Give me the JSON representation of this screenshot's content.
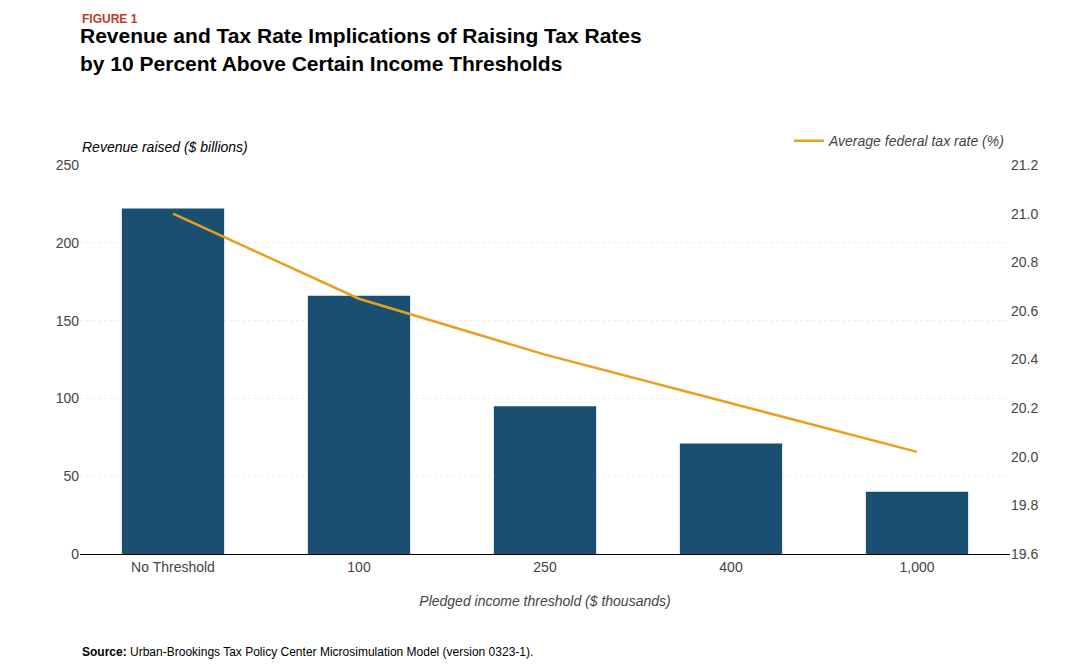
{
  "chart_data": {
    "type": "bar",
    "title": [
      "Revenue and Tax Rate Implications of Raising Tax Rates",
      "by 10 Percent Above Certain Income Thresholds"
    ],
    "annotations": [
      {
        "text": "FIGURE 1",
        "color": "#C0392B"
      },
      {
        "text": "Source:"
      },
      {
        "text": "Urban-Brookings Tax Policy Center Microsimulation Model (version 0323-1)."
      }
    ],
    "categories": [
      "No Threshold",
      "100",
      "250",
      "400",
      "1,000"
    ],
    "series": [
      {
        "type": "bar",
        "color": "#1B4F72",
        "values": [
          222,
          166,
          95,
          71,
          40
        ]
      },
      {
        "name": "Average federal tax rate (%)",
        "type": "line",
        "color": "#E8A020",
        "values": [
          21.0,
          20.65,
          20.42,
          20.22,
          20.02
        ],
        "axis": "y2"
      }
    ],
    "xlabel": "Pledged income threshold ($ thousands)",
    "ylabel": "Revenue raised ($ billions)",
    "ylim": [
      0,
      250
    ],
    "yticks": [
      0,
      50,
      100,
      150,
      200,
      250
    ],
    "y2lim": [
      19.6,
      21.2
    ],
    "y2ticks": [
      19.6,
      19.8,
      {
        "value": 20.0,
        "label": "20.0"
      },
      20.2,
      20.4,
      20.6,
      20.8,
      {
        "value": 21.0,
        "label": "21.0"
      },
      21.2
    ],
    "grid": true,
    "legend": "upper right"
  }
}
